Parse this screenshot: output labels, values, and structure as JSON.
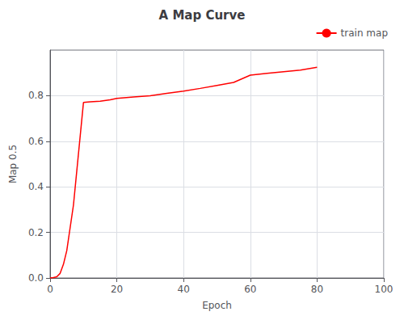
{
  "chart_data": {
    "type": "line",
    "title": "A Map Curve",
    "xlabel": "Epoch",
    "ylabel": "Map 0.5",
    "x": [
      0,
      1,
      2,
      3,
      4,
      5,
      7,
      10,
      12,
      15,
      18,
      20,
      25,
      30,
      35,
      40,
      45,
      50,
      55,
      60,
      65,
      70,
      75,
      80
    ],
    "series": [
      {
        "name": "train map",
        "color": "#ff0000",
        "values": [
          0.0,
          0.002,
          0.005,
          0.02,
          0.06,
          0.12,
          0.32,
          0.77,
          0.773,
          0.776,
          0.782,
          0.788,
          0.794,
          0.8,
          0.81,
          0.82,
          0.832,
          0.845,
          0.858,
          0.89,
          0.898,
          0.905,
          0.912,
          0.925
        ]
      }
    ],
    "xlim": [
      0,
      100
    ],
    "ylim": [
      0.0,
      1.0
    ],
    "xticks": [
      0,
      20,
      40,
      60,
      80,
      100
    ],
    "yticks": [
      {
        "value": 0.0,
        "label": "0.0"
      },
      0.2,
      0.4,
      0.6,
      0.8
    ],
    "grid": true,
    "legend": "upper right"
  }
}
